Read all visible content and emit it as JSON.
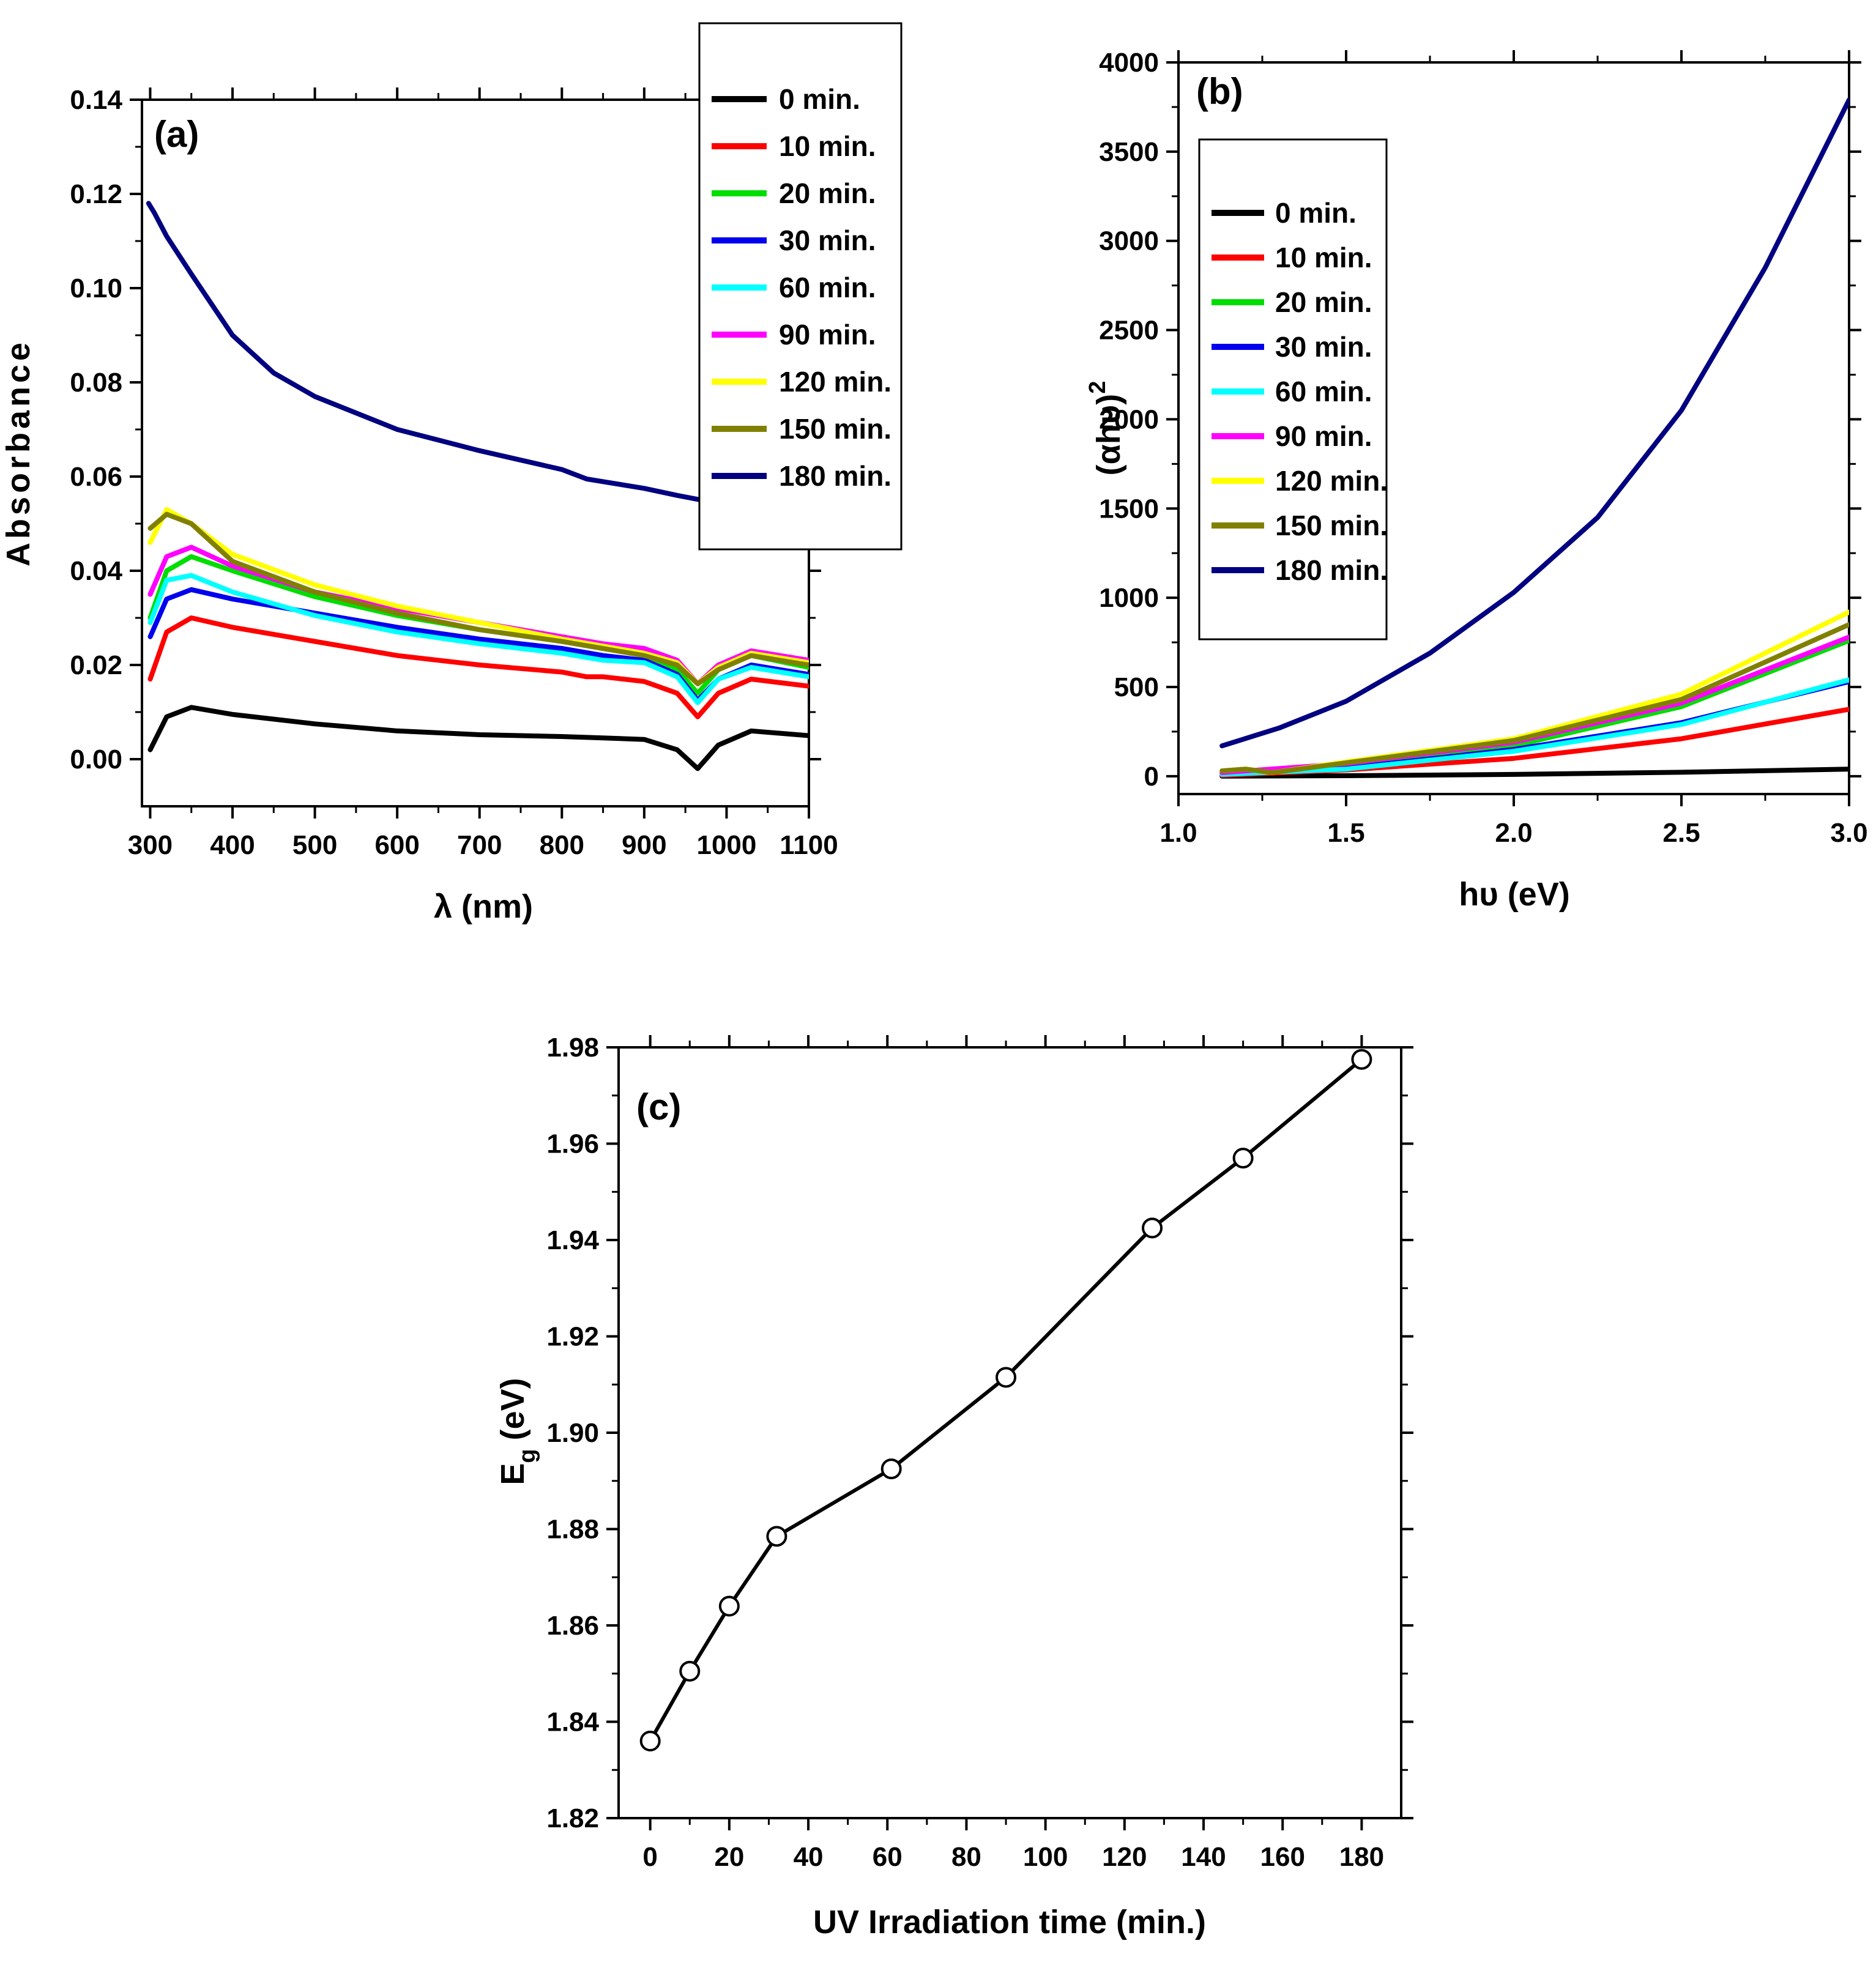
{
  "chart_data": [
    {
      "id": "a",
      "type": "line",
      "panel_label": "(a)",
      "title": "",
      "xlabel": "λ (nm)",
      "ylabel": "Absorbance",
      "xlim": [
        290,
        1100
      ],
      "ylim": [
        -0.01,
        0.14
      ],
      "xticks": [
        300,
        400,
        500,
        600,
        700,
        800,
        900,
        1000,
        1100
      ],
      "yticks": [
        0.0,
        0.02,
        0.04,
        0.06,
        0.08,
        0.1,
        0.12,
        0.14
      ],
      "ytick_labels": [
        "0.00",
        "0.02",
        "0.04",
        "0.06",
        "0.08",
        "0.10",
        "0.12",
        "0.14"
      ],
      "legend": "inside top-right",
      "series": [
        {
          "name": "0 min.",
          "color": "#000000",
          "x": [
            300,
            320,
            350,
            400,
            500,
            600,
            700,
            800,
            850,
            900,
            940,
            965,
            990,
            1030,
            1100
          ],
          "y": [
            0.002,
            0.009,
            0.011,
            0.0095,
            0.0075,
            0.006,
            0.0052,
            0.0048,
            0.0045,
            0.0042,
            0.002,
            -0.002,
            0.003,
            0.006,
            0.005
          ]
        },
        {
          "name": "10 min.",
          "color": "#ff0000",
          "x": [
            300,
            320,
            350,
            400,
            500,
            600,
            700,
            800,
            830,
            850,
            900,
            940,
            965,
            990,
            1030,
            1100
          ],
          "y": [
            0.017,
            0.027,
            0.03,
            0.028,
            0.025,
            0.022,
            0.02,
            0.0185,
            0.0175,
            0.0175,
            0.0165,
            0.014,
            0.009,
            0.014,
            0.017,
            0.0155
          ]
        },
        {
          "name": "20 min.",
          "color": "#00dd00",
          "x": [
            300,
            320,
            350,
            400,
            500,
            600,
            700,
            800,
            850,
            900,
            940,
            965,
            990,
            1030,
            1100
          ],
          "y": [
            0.03,
            0.04,
            0.043,
            0.04,
            0.0345,
            0.0305,
            0.0275,
            0.025,
            0.0235,
            0.022,
            0.019,
            0.014,
            0.019,
            0.022,
            0.0195
          ]
        },
        {
          "name": "30 min.",
          "color": "#0000ee",
          "x": [
            300,
            320,
            350,
            400,
            500,
            600,
            700,
            800,
            850,
            900,
            940,
            965,
            990,
            1030,
            1100
          ],
          "y": [
            0.026,
            0.034,
            0.036,
            0.034,
            0.031,
            0.028,
            0.0255,
            0.0235,
            0.022,
            0.021,
            0.018,
            0.0125,
            0.017,
            0.02,
            0.018
          ]
        },
        {
          "name": "60 min.",
          "color": "#00ffff",
          "x": [
            300,
            320,
            350,
            400,
            500,
            600,
            700,
            800,
            850,
            900,
            940,
            965,
            990,
            1030,
            1100
          ],
          "y": [
            0.029,
            0.038,
            0.039,
            0.0355,
            0.0305,
            0.027,
            0.0245,
            0.0225,
            0.021,
            0.0205,
            0.0175,
            0.012,
            0.017,
            0.0195,
            0.0175
          ]
        },
        {
          "name": "90 min.",
          "color": "#ff00ff",
          "x": [
            300,
            320,
            350,
            400,
            500,
            600,
            700,
            800,
            850,
            900,
            940,
            965,
            990,
            1030,
            1100
          ],
          "y": [
            0.035,
            0.043,
            0.045,
            0.041,
            0.0355,
            0.032,
            0.029,
            0.026,
            0.0245,
            0.0235,
            0.021,
            0.016,
            0.02,
            0.023,
            0.021
          ]
        },
        {
          "name": "120 min.",
          "color": "#ffff00",
          "x": [
            300,
            320,
            350,
            400,
            500,
            600,
            700,
            800,
            850,
            900,
            940,
            965,
            990,
            1030,
            1100
          ],
          "y": [
            0.046,
            0.053,
            0.05,
            0.0435,
            0.037,
            0.0325,
            0.029,
            0.0255,
            0.024,
            0.0225,
            0.0205,
            0.016,
            0.0195,
            0.0225,
            0.0205
          ]
        },
        {
          "name": "150 min.",
          "color": "#808000",
          "x": [
            300,
            320,
            350,
            400,
            500,
            600,
            700,
            800,
            850,
            900,
            940,
            965,
            990,
            1030,
            1100
          ],
          "y": [
            0.049,
            0.052,
            0.05,
            0.042,
            0.0355,
            0.031,
            0.0275,
            0.025,
            0.0235,
            0.022,
            0.02,
            0.016,
            0.019,
            0.022,
            0.02
          ]
        },
        {
          "name": "180 min.",
          "color": "#000080",
          "x": [
            298,
            305,
            320,
            350,
            400,
            450,
            500,
            600,
            700,
            800,
            830,
            900,
            940,
            970
          ],
          "y": [
            0.118,
            0.116,
            0.111,
            0.103,
            0.09,
            0.082,
            0.077,
            0.07,
            0.0655,
            0.0615,
            0.0595,
            0.0575,
            0.056,
            0.055
          ]
        }
      ]
    },
    {
      "id": "b",
      "type": "line",
      "panel_label": "(b)",
      "title": "",
      "xlabel": "hυ (eV)",
      "ylabel": "(αhυ)",
      "ylabel_sup": "2",
      "xlim": [
        1.0,
        3.0
      ],
      "ylim": [
        -100,
        4000
      ],
      "xticks": [
        1.0,
        1.5,
        2.0,
        2.5,
        3.0
      ],
      "xtick_labels": [
        "1.0",
        "1.5",
        "2.0",
        "2.5",
        "3.0"
      ],
      "yticks": [
        0,
        500,
        1000,
        1500,
        2000,
        2500,
        3000,
        3500,
        4000
      ],
      "legend": "inside top-left",
      "series": [
        {
          "name": "0 min.",
          "color": "#000000",
          "x": [
            1.13,
            1.5,
            2.0,
            2.5,
            3.0
          ],
          "y": [
            0,
            3,
            10,
            22,
            40
          ]
        },
        {
          "name": "10 min.",
          "color": "#ff0000",
          "x": [
            1.13,
            1.5,
            2.0,
            2.5,
            3.0
          ],
          "y": [
            5,
            35,
            100,
            210,
            375
          ]
        },
        {
          "name": "20 min.",
          "color": "#00dd00",
          "x": [
            1.13,
            1.5,
            2.0,
            2.5,
            3.0
          ],
          "y": [
            10,
            60,
            170,
            390,
            760
          ]
        },
        {
          "name": "30 min.",
          "color": "#0000ee",
          "x": [
            1.13,
            1.5,
            2.0,
            2.5,
            3.0
          ],
          "y": [
            10,
            45,
            150,
            300,
            530
          ]
        },
        {
          "name": "60 min.",
          "color": "#00ffff",
          "x": [
            1.13,
            1.5,
            2.0,
            2.5,
            3.0
          ],
          "y": [
            10,
            40,
            140,
            290,
            540
          ]
        },
        {
          "name": "90 min.",
          "color": "#ff00ff",
          "x": [
            1.13,
            1.5,
            2.0,
            2.5,
            3.0
          ],
          "y": [
            20,
            70,
            190,
            410,
            780
          ]
        },
        {
          "name": "120 min.",
          "color": "#ffff00",
          "x": [
            1.13,
            1.2,
            1.28,
            1.5,
            2.0,
            2.5,
            3.0
          ],
          "y": [
            30,
            40,
            20,
            80,
            210,
            460,
            920
          ]
        },
        {
          "name": "150 min.",
          "color": "#808000",
          "x": [
            1.13,
            1.2,
            1.28,
            1.5,
            2.0,
            2.5,
            3.0
          ],
          "y": [
            30,
            40,
            20,
            75,
            200,
            430,
            850
          ]
        },
        {
          "name": "180 min.",
          "color": "#000080",
          "x": [
            1.13,
            1.3,
            1.5,
            1.75,
            2.0,
            2.25,
            2.5,
            2.75,
            3.0
          ],
          "y": [
            170,
            270,
            420,
            690,
            1030,
            1450,
            2050,
            2850,
            3790
          ]
        }
      ]
    },
    {
      "id": "c",
      "type": "line",
      "panel_label": "(c)",
      "title": "",
      "xlabel": "UV Irradiation time (min.)",
      "ylabel": "E",
      "ylabel_sub": "g",
      "ylabel_unit": "(eV)",
      "xlim": [
        -8,
        190
      ],
      "ylim": [
        1.82,
        1.98
      ],
      "xticks": [
        0,
        20,
        40,
        60,
        80,
        100,
        120,
        140,
        160,
        180
      ],
      "yticks": [
        1.82,
        1.84,
        1.86,
        1.88,
        1.9,
        1.92,
        1.94,
        1.96,
        1.98
      ],
      "ytick_labels": [
        "1.82",
        "1.84",
        "1.86",
        "1.88",
        "1.90",
        "1.92",
        "1.94",
        "1.96",
        "1.98"
      ],
      "series": [
        {
          "name": "Eg",
          "color": "#000000",
          "marker": "open-circle",
          "x": [
            0,
            10,
            20,
            32,
            61,
            90,
            127,
            150,
            180
          ],
          "y": [
            1.836,
            1.8505,
            1.864,
            1.8785,
            1.8925,
            1.9115,
            1.9425,
            1.957,
            1.9775
          ]
        }
      ]
    }
  ]
}
